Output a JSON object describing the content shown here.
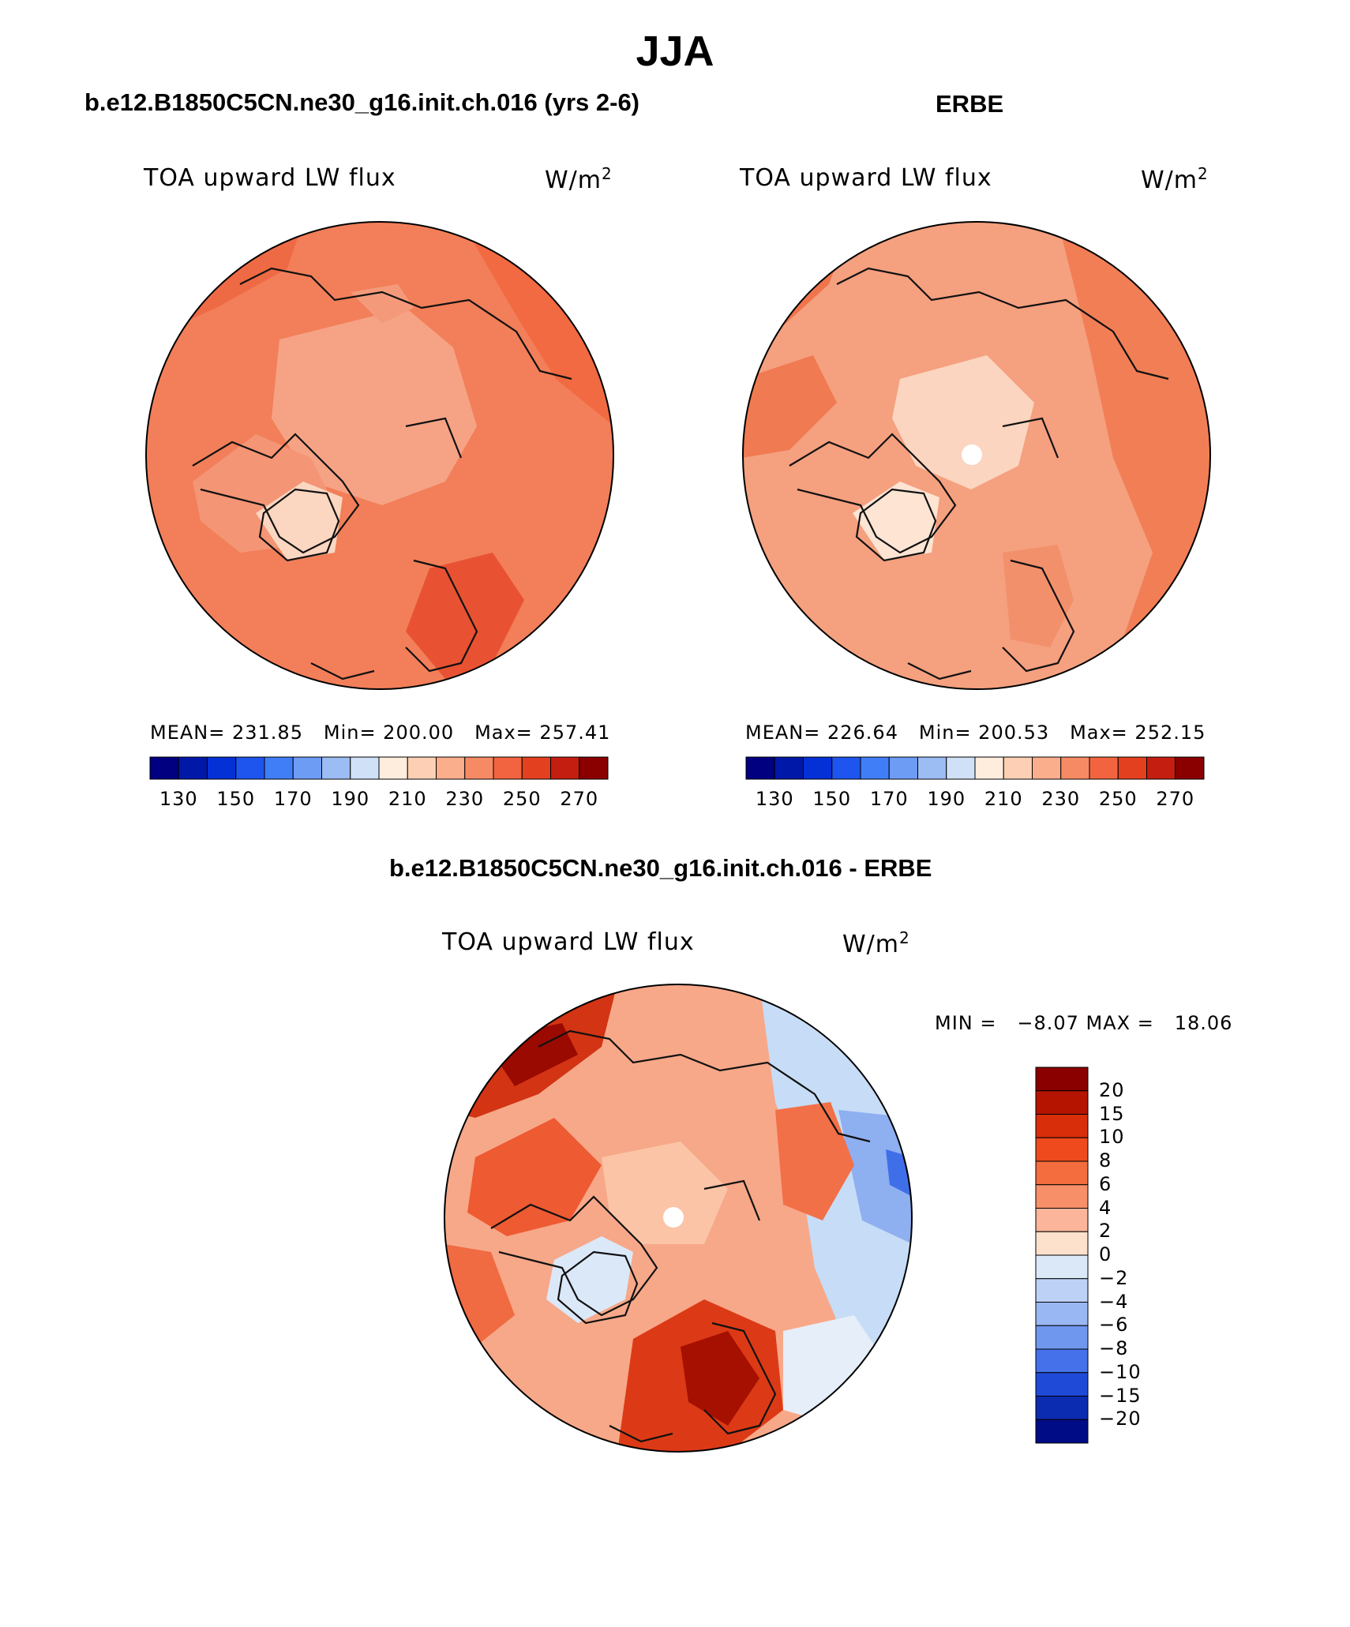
{
  "title": "JJA",
  "panels": [
    {
      "heading": "b.e12.B1850C5CN.ne30_g16.init.ch.016 (yrs 2-6)",
      "left_label": "TOA upward LW flux",
      "units": "W/m",
      "units_sup": "2",
      "stats": {
        "mean": "MEAN= 231.85",
        "min": "Min= 200.00",
        "max": "Max= 257.41"
      },
      "map_base_color": "#f27f59",
      "pole_hole": false
    },
    {
      "heading": "ERBE",
      "left_label": "TOA upward LW flux",
      "units": "W/m",
      "units_sup": "2",
      "stats": {
        "mean": "MEAN= 226.64",
        "min": "Min= 200.53",
        "max": "Max= 252.15"
      },
      "map_base_color": "#f5a07f",
      "pole_hole": true
    }
  ],
  "colorbar_top": {
    "ticks": [
      "130",
      "150",
      "170",
      "190",
      "210",
      "230",
      "250",
      "270"
    ],
    "colors": [
      "#000080",
      "#0018a8",
      "#0431d6",
      "#1e55ee",
      "#3f7ef7",
      "#6d9cf5",
      "#9cbcf4",
      "#cfe0f7",
      "#feecdc",
      "#fdd0b5",
      "#faae8c",
      "#f68a64",
      "#f2643f",
      "#e3401f",
      "#c41e10",
      "#8a0000"
    ]
  },
  "difference": {
    "heading": "b.e12.B1850C5CN.ne30_g16.init.ch.016 - ERBE",
    "left_label": "TOA upward LW flux",
    "units": "W/m",
    "units_sup": "2",
    "minmax": "MIN =   −8.07 MAX =   18.06",
    "pole_hole": true,
    "colorbar": {
      "labels": [
        "20",
        "15",
        "10",
        "8",
        "6",
        "4",
        "2",
        "0",
        "−2",
        "−4",
        "−6",
        "−8",
        "−10",
        "−15",
        "−20"
      ],
      "colors": [
        "#8a0000",
        "#b41400",
        "#d92e0a",
        "#ee4a1e",
        "#f46d3e",
        "#f79068",
        "#fab59a",
        "#fde1cc",
        "#dbe8f8",
        "#bcd1f5",
        "#99b7f2",
        "#6f97ee",
        "#4572ea",
        "#1f4ad8",
        "#0b2bb0",
        "#000c85"
      ]
    }
  }
}
